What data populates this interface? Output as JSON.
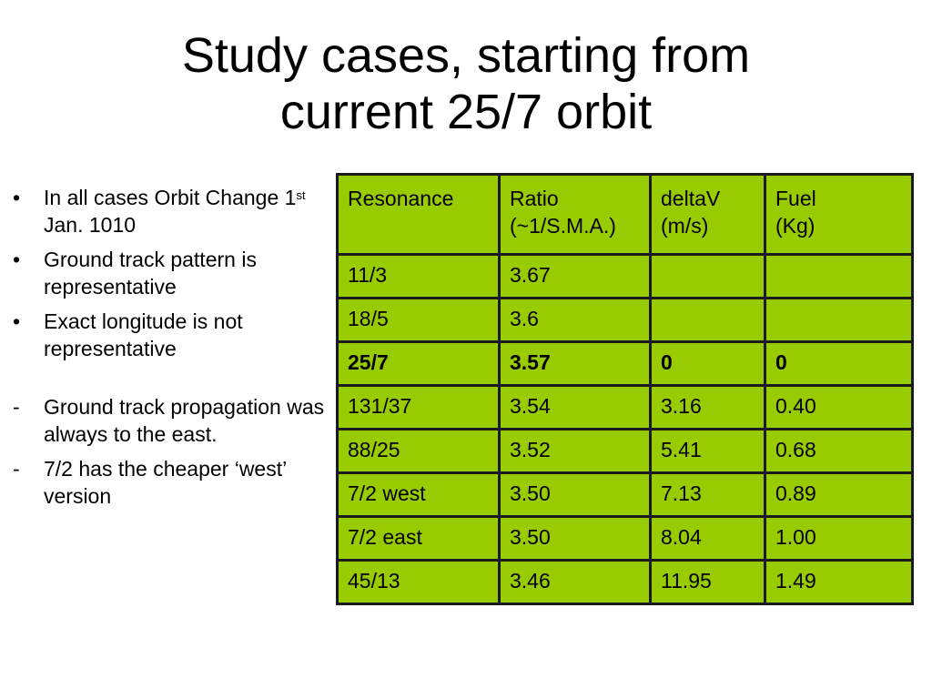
{
  "title": {
    "line1": "Study cases, starting from",
    "line2": "current 25/7 orbit"
  },
  "bullets": [
    {
      "text": "In all cases Orbit Change 1",
      "sup": "st",
      "text_after": " Jan. 1010"
    },
    {
      "text": "Ground track pattern is representative"
    },
    {
      "text": "Exact longitude is not representative"
    }
  ],
  "bullet_marker": "•",
  "dash_marker": "-",
  "dash_items": [
    "Ground track propagation was always to the east.",
    "7/2 has the cheaper ‘west’ version"
  ],
  "table": {
    "headers": [
      [
        "Resonance"
      ],
      [
        "Ratio",
        "(~1/S.M.A.)"
      ],
      [
        "deltaV",
        "(m/s)"
      ],
      [
        "Fuel",
        "(Kg)"
      ]
    ],
    "rows": [
      {
        "cells": [
          "11/3",
          "3.67",
          "",
          ""
        ],
        "bold": false
      },
      {
        "cells": [
          "18/5",
          "3.6",
          "",
          ""
        ],
        "bold": false
      },
      {
        "cells": [
          "25/7",
          "3.57",
          "0",
          "0"
        ],
        "bold": true
      },
      {
        "cells": [
          "131/37",
          "3.54",
          "3.16",
          "0.40"
        ],
        "bold": false
      },
      {
        "cells": [
          "88/25",
          "3.52",
          "5.41",
          "0.68"
        ],
        "bold": false
      },
      {
        "cells": [
          "7/2 west",
          "3.50",
          "7.13",
          "0.89"
        ],
        "bold": false
      },
      {
        "cells": [
          "7/2 east",
          "3.50",
          "8.04",
          "1.00"
        ],
        "bold": false
      },
      {
        "cells": [
          "45/13",
          "3.46",
          "11.95",
          "1.49"
        ],
        "bold": false
      }
    ],
    "background_color": "#99cc00",
    "border_color": "#1a1a1a"
  }
}
